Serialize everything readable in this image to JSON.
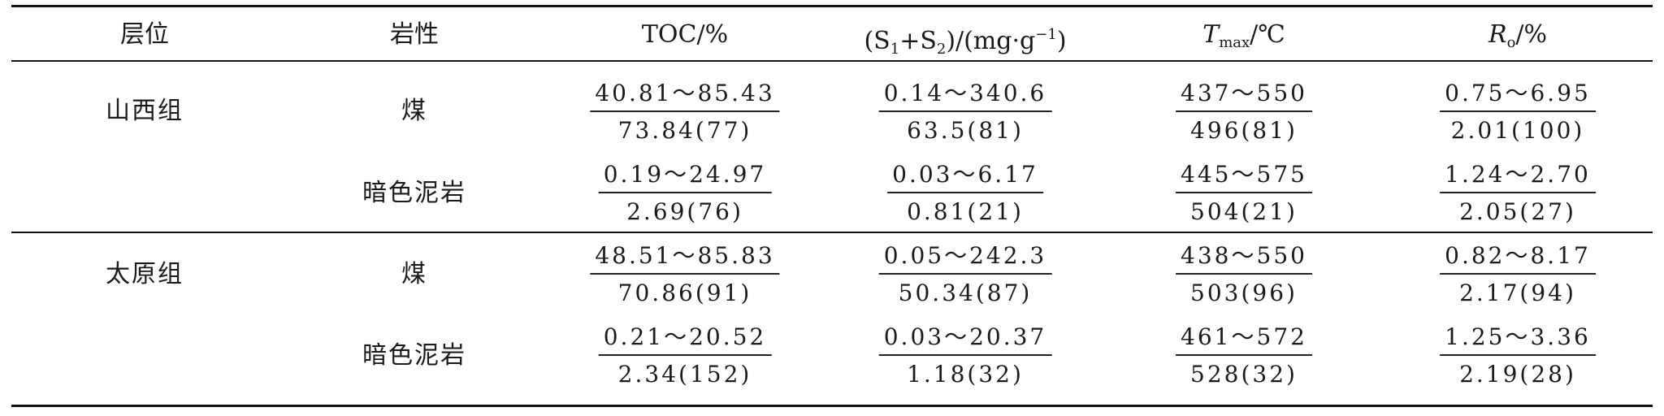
{
  "headers": {
    "layer": "层位",
    "lithology": "岩性",
    "toc": "TOC/%",
    "s_open": "(S",
    "s1_sub": "1",
    "s_plus": "+S",
    "s2_sub": "2",
    "s_unit": ")/(mg·g",
    "s_sup": "−1",
    "s_close": ")",
    "tmax_T": "T",
    "tmax_sub": "max",
    "tmax_unit": "/℃",
    "ro_R": "R",
    "ro_sub": "o",
    "ro_unit": "/%"
  },
  "rows": [
    {
      "group": "山西组",
      "lithology": "煤",
      "toc": {
        "range": "40.81～85.43",
        "avg": "73.84(77)"
      },
      "s1s2": {
        "range": "0.14～340.6",
        "avg": "63.5(81)"
      },
      "tmax": {
        "range": "437～550",
        "avg": "496(81)"
      },
      "ro": {
        "range": "0.75～6.95",
        "avg": "2.01(100)"
      }
    },
    {
      "group": "",
      "lithology": "暗色泥岩",
      "toc": {
        "range": "0.19～24.97",
        "avg": "2.69(76)"
      },
      "s1s2": {
        "range": "0.03～6.17",
        "avg": "0.81(21)"
      },
      "tmax": {
        "range": "445～575",
        "avg": "504(21)"
      },
      "ro": {
        "range": "1.24～2.70",
        "avg": "2.05(27)"
      }
    },
    {
      "group": "太原组",
      "lithology": "煤",
      "toc": {
        "range": "48.51～85.83",
        "avg": "70.86(91)"
      },
      "s1s2": {
        "range": "0.05～242.3",
        "avg": "50.34(87)"
      },
      "tmax": {
        "range": "438～550",
        "avg": "503(96)"
      },
      "ro": {
        "range": "0.82～8.17",
        "avg": "2.17(94)"
      }
    },
    {
      "group": "",
      "lithology": "暗色泥岩",
      "toc": {
        "range": "0.21～20.52",
        "avg": "2.34(152)"
      },
      "s1s2": {
        "range": "0.03～20.37",
        "avg": "1.18(32)"
      },
      "tmax": {
        "range": "461～572",
        "avg": "528(32)"
      },
      "ro": {
        "range": "1.25～3.36",
        "avg": "2.19(28)"
      }
    }
  ]
}
